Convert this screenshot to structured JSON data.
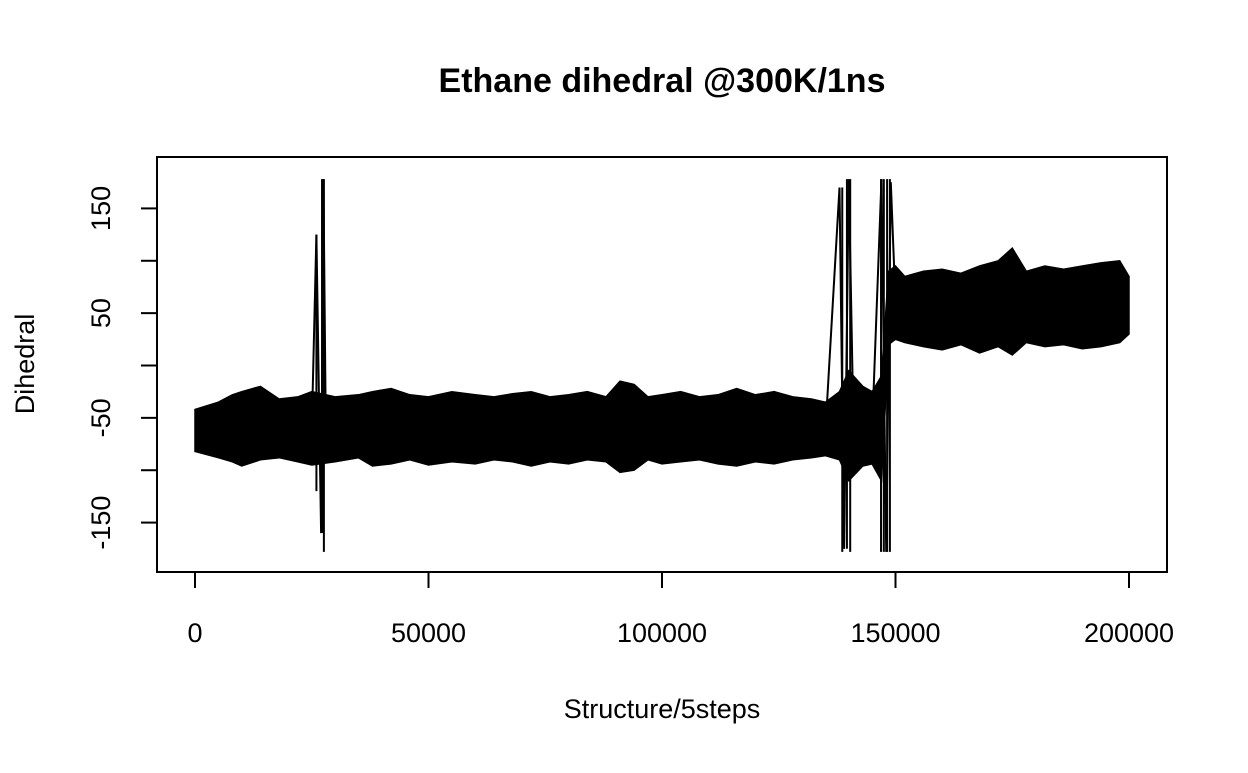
{
  "chart_data": {
    "type": "line",
    "title": "Ethane dihedral @300K/1ns",
    "xlabel": "Structure/5steps",
    "ylabel": "Dihedral",
    "xlim": [
      0,
      200000
    ],
    "ylim": [
      -180,
      180
    ],
    "x_ticks": [
      0,
      50000,
      100000,
      150000,
      200000
    ],
    "x_tick_labels": [
      "0",
      "50000",
      "100000",
      "150000",
      "200000"
    ],
    "y_ticks": [
      -150,
      -100,
      -50,
      0,
      50,
      100,
      150
    ],
    "y_tick_labels": [
      "-150",
      "",
      "-50",
      "",
      "50",
      "",
      "150"
    ],
    "grid": false,
    "legend": "none",
    "series": [
      {
        "color": "#000000",
        "x": [
          0,
          5000,
          8000,
          12000,
          15000,
          20000,
          25000,
          26000,
          27000,
          27500,
          28000,
          30000,
          35000,
          40000,
          45000,
          50000,
          55000,
          60000,
          65000,
          70000,
          75000,
          80000,
          85000,
          90000,
          92000,
          95000,
          100000,
          105000,
          110000,
          115000,
          120000,
          125000,
          130000,
          135000,
          138000,
          139000,
          140000,
          141000,
          145000,
          147000,
          148000,
          149000,
          150000,
          155000,
          160000,
          165000,
          170000,
          175000,
          180000,
          185000,
          190000,
          195000,
          200000
        ],
        "y": [
          -60,
          -62,
          -58,
          -61,
          -60,
          -63,
          -60,
          125,
          -160,
          178,
          -60,
          -61,
          -59,
          -62,
          -60,
          -58,
          -61,
          -60,
          -62,
          -59,
          -61,
          -60,
          -62,
          -60,
          -55,
          -61,
          -60,
          -59,
          -62,
          -60,
          -61,
          -58,
          -60,
          -61,
          170,
          -175,
          178,
          -60,
          -62,
          178,
          -178,
          175,
          60,
          58,
          61,
          59,
          62,
          60,
          58,
          61,
          59,
          60,
          60
        ]
      }
    ],
    "envelope": {
      "description_units": "data units; approximate upper/lower extent of the dense trace per x",
      "x": [
        0,
        5000,
        8000,
        10000,
        14000,
        18000,
        22000,
        25000,
        30000,
        35000,
        38000,
        42000,
        46000,
        50000,
        55000,
        60000,
        64000,
        68000,
        72000,
        76000,
        80000,
        84000,
        88000,
        91000,
        94000,
        97000,
        100000,
        104000,
        108000,
        112000,
        116000,
        120000,
        124000,
        128000,
        132000,
        135000,
        138000,
        140000,
        143000,
        145000,
        147000,
        148500,
        150000,
        152000,
        156000,
        160000,
        164000,
        168000,
        172000,
        175000,
        178000,
        182000,
        186000,
        190000,
        194000,
        198000,
        200000
      ],
      "upper": [
        -42,
        -35,
        -28,
        -25,
        -20,
        -32,
        -30,
        -25,
        -30,
        -28,
        -25,
        -22,
        -28,
        -30,
        -25,
        -28,
        -30,
        -27,
        -25,
        -30,
        -28,
        -25,
        -30,
        -15,
        -18,
        -30,
        -28,
        -25,
        -30,
        -28,
        -22,
        -28,
        -25,
        -30,
        -32,
        -35,
        -25,
        -5,
        -20,
        -25,
        -10,
        90,
        95,
        85,
        90,
        92,
        88,
        95,
        100,
        112,
        90,
        95,
        92,
        95,
        98,
        100,
        85
      ],
      "lower": [
        -82,
        -88,
        -92,
        -96,
        -90,
        -88,
        -92,
        -95,
        -92,
        -88,
        -96,
        -94,
        -90,
        -95,
        -92,
        -94,
        -90,
        -92,
        -96,
        -92,
        -94,
        -90,
        -92,
        -102,
        -100,
        -90,
        -94,
        -92,
        -90,
        -94,
        -96,
        -92,
        -94,
        -90,
        -88,
        -86,
        -90,
        -110,
        -96,
        -94,
        -110,
        20,
        25,
        22,
        18,
        15,
        20,
        12,
        18,
        10,
        22,
        18,
        20,
        16,
        18,
        22,
        30
      ]
    }
  }
}
